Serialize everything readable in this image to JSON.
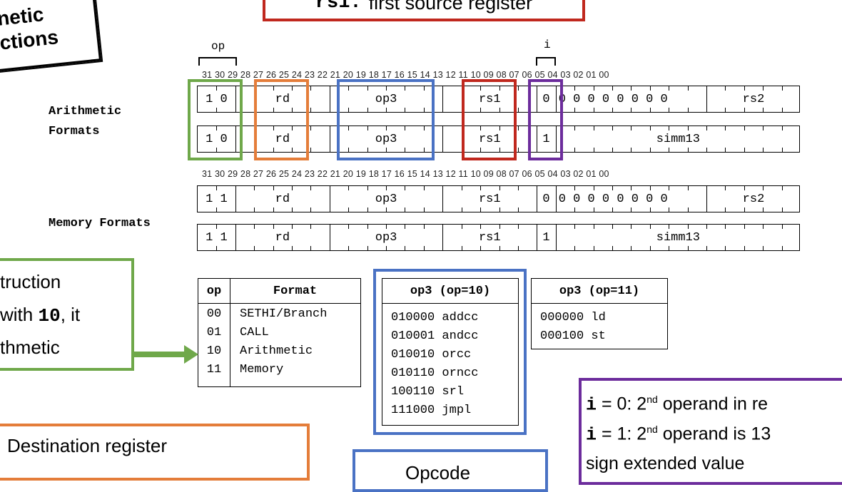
{
  "title_card": {
    "line1": "netic",
    "line2": "ctions"
  },
  "rs1_callout": {
    "key": "rs1:",
    "text": "first source register"
  },
  "field_labels": {
    "op": "op",
    "i": "i"
  },
  "bit_numbers": "31 30 29 28 27 26 25 24 23 22 21 20 19 18 17 16 15 14 13 12 11 10 09 08 07 06 05 04 03 02 01 00",
  "arith_label": {
    "line1": "Arithmetic",
    "line2": "Formats"
  },
  "memory_label": "Memory Formats",
  "rows": [
    {
      "op": "1 0",
      "rd": "rd",
      "op3": "op3",
      "rs1": "rs1",
      "i": "0",
      "zeros": "0 0 0 0 0 0 0 0",
      "tail": "rs2"
    },
    {
      "op": "1 0",
      "rd": "rd",
      "op3": "op3",
      "rs1": "rs1",
      "i": "1",
      "tail": "simm13"
    },
    {
      "op": "1 1",
      "rd": "rd",
      "op3": "op3",
      "rs1": "rs1",
      "i": "0",
      "zeros": "0 0 0 0 0 0 0 0",
      "tail": "rs2"
    },
    {
      "op": "1 1",
      "rd": "rd",
      "op3": "op3",
      "rs1": "rs1",
      "i": "1",
      "tail": "simm13"
    }
  ],
  "op_table": {
    "headers": [
      "op",
      "Format"
    ],
    "rows": [
      [
        "00",
        "SETHI/Branch"
      ],
      [
        "01",
        "CALL"
      ],
      [
        "10",
        "Arithmetic"
      ],
      [
        "11",
        "Memory"
      ]
    ]
  },
  "op3_arith": {
    "header": "op3 (op=10)",
    "rows": [
      "010000 addcc",
      "010001 andcc",
      "010010 orcc",
      "010110 orncc",
      "100110 srl",
      "111000 jmpl"
    ]
  },
  "op3_mem": {
    "header": "op3 (op=11)",
    "rows": [
      "000000 ld",
      "000100 st"
    ]
  },
  "green_callout": {
    "line1": "truction",
    "line2_pre": "with ",
    "line2_bold": "10",
    "line2_post": ", it",
    "line3": "thmetic"
  },
  "orange_callout": "Destination register",
  "purple_callout": {
    "l1_key": "i",
    "l1_mid": " = 0: 2",
    "l1_sup": "nd",
    "l1_rest": " operand in re",
    "l2_key": "i",
    "l2_mid": " = 1: 2",
    "l2_sup": "nd",
    "l2_rest": " operand is 13",
    "l3": "sign extended value"
  },
  "blue_bottom": "Opcode",
  "colors": {
    "green": "#6fa84a",
    "orange": "#e47d3a",
    "blue": "#4a72c4",
    "red": "#c0281e",
    "purple": "#6c2c9c"
  }
}
